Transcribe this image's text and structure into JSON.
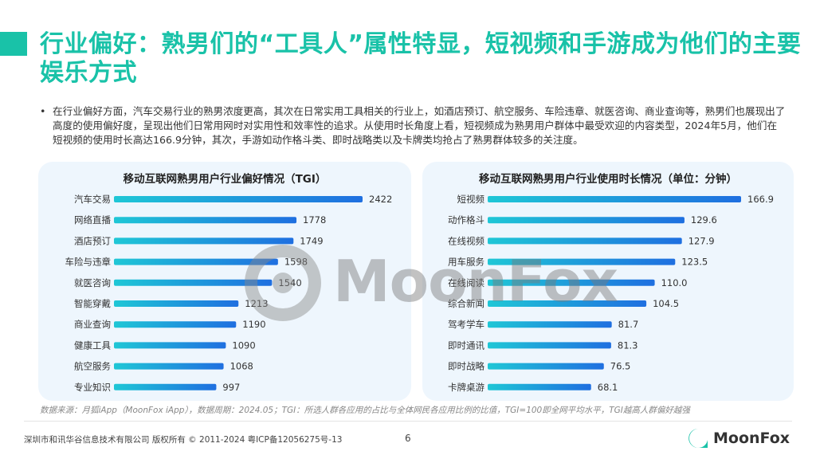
{
  "title": "行业偏好：熟男们的“工具人”属性特显，短视频和手游成为他们的主要娱乐方式",
  "bullet": "•",
  "description": "在行业偏好方面，汽车交易行业的熟男浓度更高，其次在日常实用工具相关的行业上，如酒店预订、航空服务、车险违章、就医咨询、商业查询等，熟男们也展现出了高度的使用偏好度，呈现出他们日常用网时对实用性和效率性的追求。从使用时长角度上看，短视频成为熟男用户群体中最受欢迎的内容类型，2024年5月，他们在短视频的使用时长高达166.9分钟，其次，手游如动作格斗类、即时战略类以及卡牌类均抢占了熟男群体较多的关注度。",
  "watermark": "MoonFox",
  "source": "数据来源：月狐iApp（MoonFox iApp），数据周期：2024.05；TGI：所选人群各应用的占比与全体网民各应用比例的比值，TGI=100即全网平均水平，TGI越高人群偏好越强",
  "footer": "深圳市和讯华谷信息技术有限公司 版权所有 © 2011-2024 粤ICP备12056275号-13",
  "page_number": "6",
  "logo_text": "MoonFox",
  "colors": {
    "accent": "#19c2a8",
    "bar_start": "#1fc7d6",
    "bar_end": "#1f6fe0",
    "panel_bg": "#eef6fd"
  },
  "chart_data": [
    {
      "type": "bar",
      "orientation": "horizontal",
      "title": "移动互联网熟男用户行业偏好情况（TGI）",
      "categories": [
        "汽车交易",
        "网络直播",
        "酒店预订",
        "车险与违章",
        "就医咨询",
        "智能穿戴",
        "商业查询",
        "健康工具",
        "航空服务",
        "专业知识"
      ],
      "values": [
        2422,
        1778,
        1749,
        1598,
        1540,
        1213,
        1190,
        1090,
        1068,
        997
      ],
      "labels": [
        "2422",
        "1778",
        "1749",
        "1598",
        "1540",
        "1213",
        "1190",
        "1090",
        "1068",
        "997"
      ]
    },
    {
      "type": "bar",
      "orientation": "horizontal",
      "title": "移动互联网熟男用户行业使用时长情况（单位：分钟）",
      "categories": [
        "短视频",
        "动作格斗",
        "在线视频",
        "用车服务",
        "在线阅读",
        "综合新闻",
        "驾考学车",
        "即时通讯",
        "即时战略",
        "卡牌桌游"
      ],
      "values": [
        166.9,
        129.6,
        127.9,
        123.5,
        110.0,
        104.5,
        81.7,
        81.3,
        76.5,
        68.1
      ],
      "labels": [
        "166.9",
        "129.6",
        "127.9",
        "123.5",
        "110.0",
        "104.5",
        "81.7",
        "81.3",
        "76.5",
        "68.1"
      ]
    }
  ]
}
